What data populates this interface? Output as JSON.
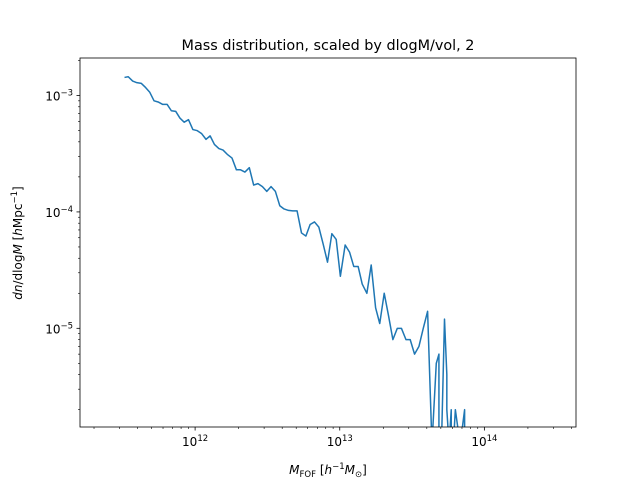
{
  "chart_data": {
    "type": "line",
    "title": "Mass distribution, scaled by dlogM/vol, 2",
    "xlabel": {
      "base": "M",
      "sub": "FOF",
      "unit_open": " [",
      "h": "h",
      "h_exp": "−1",
      "m": "M",
      "m_sub": "⊙",
      "unit_close": "]"
    },
    "ylabel": {
      "dn": "dn",
      "slash": "/dlog",
      "M": "M",
      "open": " [",
      "h": "h",
      "mpc": "Mpc",
      "exp": "−1",
      "close": "]"
    },
    "xscale": "log",
    "yscale": "log",
    "xlim": [
      160000000000.0,
      430000000000000.0
    ],
    "ylim": [
      1.42e-06,
      0.0021
    ],
    "x_ticks": [
      {
        "value": 1000000000000.0,
        "base": "10",
        "exp": "12"
      },
      {
        "value": 10000000000000.0,
        "base": "10",
        "exp": "13"
      },
      {
        "value": 100000000000000.0,
        "base": "10",
        "exp": "14"
      }
    ],
    "y_ticks": [
      {
        "value": 1e-05,
        "base": "10",
        "exp": "−5"
      },
      {
        "value": 0.0001,
        "base": "10",
        "exp": "−4"
      },
      {
        "value": 0.001,
        "base": "10",
        "exp": "−3"
      }
    ],
    "grid": false,
    "color": "#1f77b4",
    "series": [
      {
        "x": [
          325000000000.0,
          345000000000.0,
          370000000000.0,
          395000000000.0,
          425000000000.0,
          455000000000.0,
          485000000000.0,
          520000000000.0,
          555000000000.0,
          595000000000.0,
          640000000000.0,
          685000000000.0,
          735000000000.0,
          785000000000.0,
          840000000000.0,
          900000000000.0,
          965000000000.0,
          1030000000000.0,
          1110000000000.0,
          1190000000000.0,
          1270000000000.0,
          1360000000000.0,
          1460000000000.0,
          1560000000000.0,
          1680000000000.0,
          1800000000000.0,
          1930000000000.0,
          2060000000000.0,
          2210000000000.0,
          2370000000000.0,
          2540000000000.0,
          2720000000000.0,
          2920000000000.0,
          3130000000000.0,
          3350000000000.0,
          3590000000000.0,
          3850000000000.0,
          4120000000000.0,
          4420000000000.0,
          4730000000000.0,
          5070000000000.0,
          5440000000000.0,
          5830000000000.0,
          6240000000000.0,
          6690000000000.0,
          7170000000000.0,
          7680000000000.0,
          8230000000000.0,
          8820000000000.0,
          9450000000000.0,
          10100000000000.0,
          10900000000000.0,
          11700000000000.0,
          12500000000000.0,
          13400000000000.0,
          14300000000000.0,
          15400000000000.0,
          16500000000000.0,
          17700000000000.0,
          18900000000000.0,
          20300000000000.0,
          21700000000000.0,
          23300000000000.0,
          25000000000000.0,
          26700000000000.0,
          28700000000000.0,
          30700000000000.0,
          32900000000000.0,
          35300000000000.0,
          37800000000000.0,
          40500000000000.0,
          43400000000000.0,
          46500000000000.0,
          48500000000000.0,
          48500000000000.0,
          50500000000000.0,
          53000000000000.0,
          55000000000000.0,
          55000000000000.0,
          57000000000000.0,
          59000000000000.0,
          59000000000000.0,
          61000000000000.0,
          63000000000000.0,
          68000000000000.0,
          73000000000000.0,
          73000000000000.0
        ],
        "y": [
          0.00143,
          0.00145,
          0.00133,
          0.00129,
          0.00127,
          0.00117,
          0.00107,
          0.0009,
          0.00088,
          0.00084,
          0.00084,
          0.00074,
          0.00073,
          0.00064,
          0.00059,
          0.00062,
          0.00051,
          0.0005,
          0.00047,
          0.00042,
          0.00045,
          0.00038,
          0.00035,
          0.00034,
          0.00031,
          0.00029,
          0.00023,
          0.00023,
          0.00022,
          0.00024,
          0.00017,
          0.000175,
          0.000165,
          0.00015,
          0.000165,
          0.00015,
          0.000113,
          0.000106,
          0.000103,
          0.000102,
          0.000102,
          6.6e-05,
          6.2e-05,
          7.8e-05,
          8.2e-05,
          7.4e-05,
          5.3e-05,
          3.7e-05,
          6.5e-05,
          5.8e-05,
          2.8e-05,
          5.2e-05,
          4.5e-05,
          3.4e-05,
          3.4e-05,
          2.4e-05,
          2e-05,
          3.5e-05,
          1.5e-05,
          1.1e-05,
          2e-05,
          1.3e-05,
          8e-06,
          1e-05,
          1e-05,
          8e-06,
          8e-06,
          6e-06,
          7e-06,
          1e-05,
          1.4e-05,
          1e-06,
          5e-06,
          6e-06,
          1e-06,
          1e-06,
          1.2e-05,
          4e-06,
          2e-06,
          1e-06,
          2e-06,
          1e-06,
          1e-06,
          2e-06,
          1e-06,
          2e-06,
          1e-06
        ]
      }
    ]
  }
}
